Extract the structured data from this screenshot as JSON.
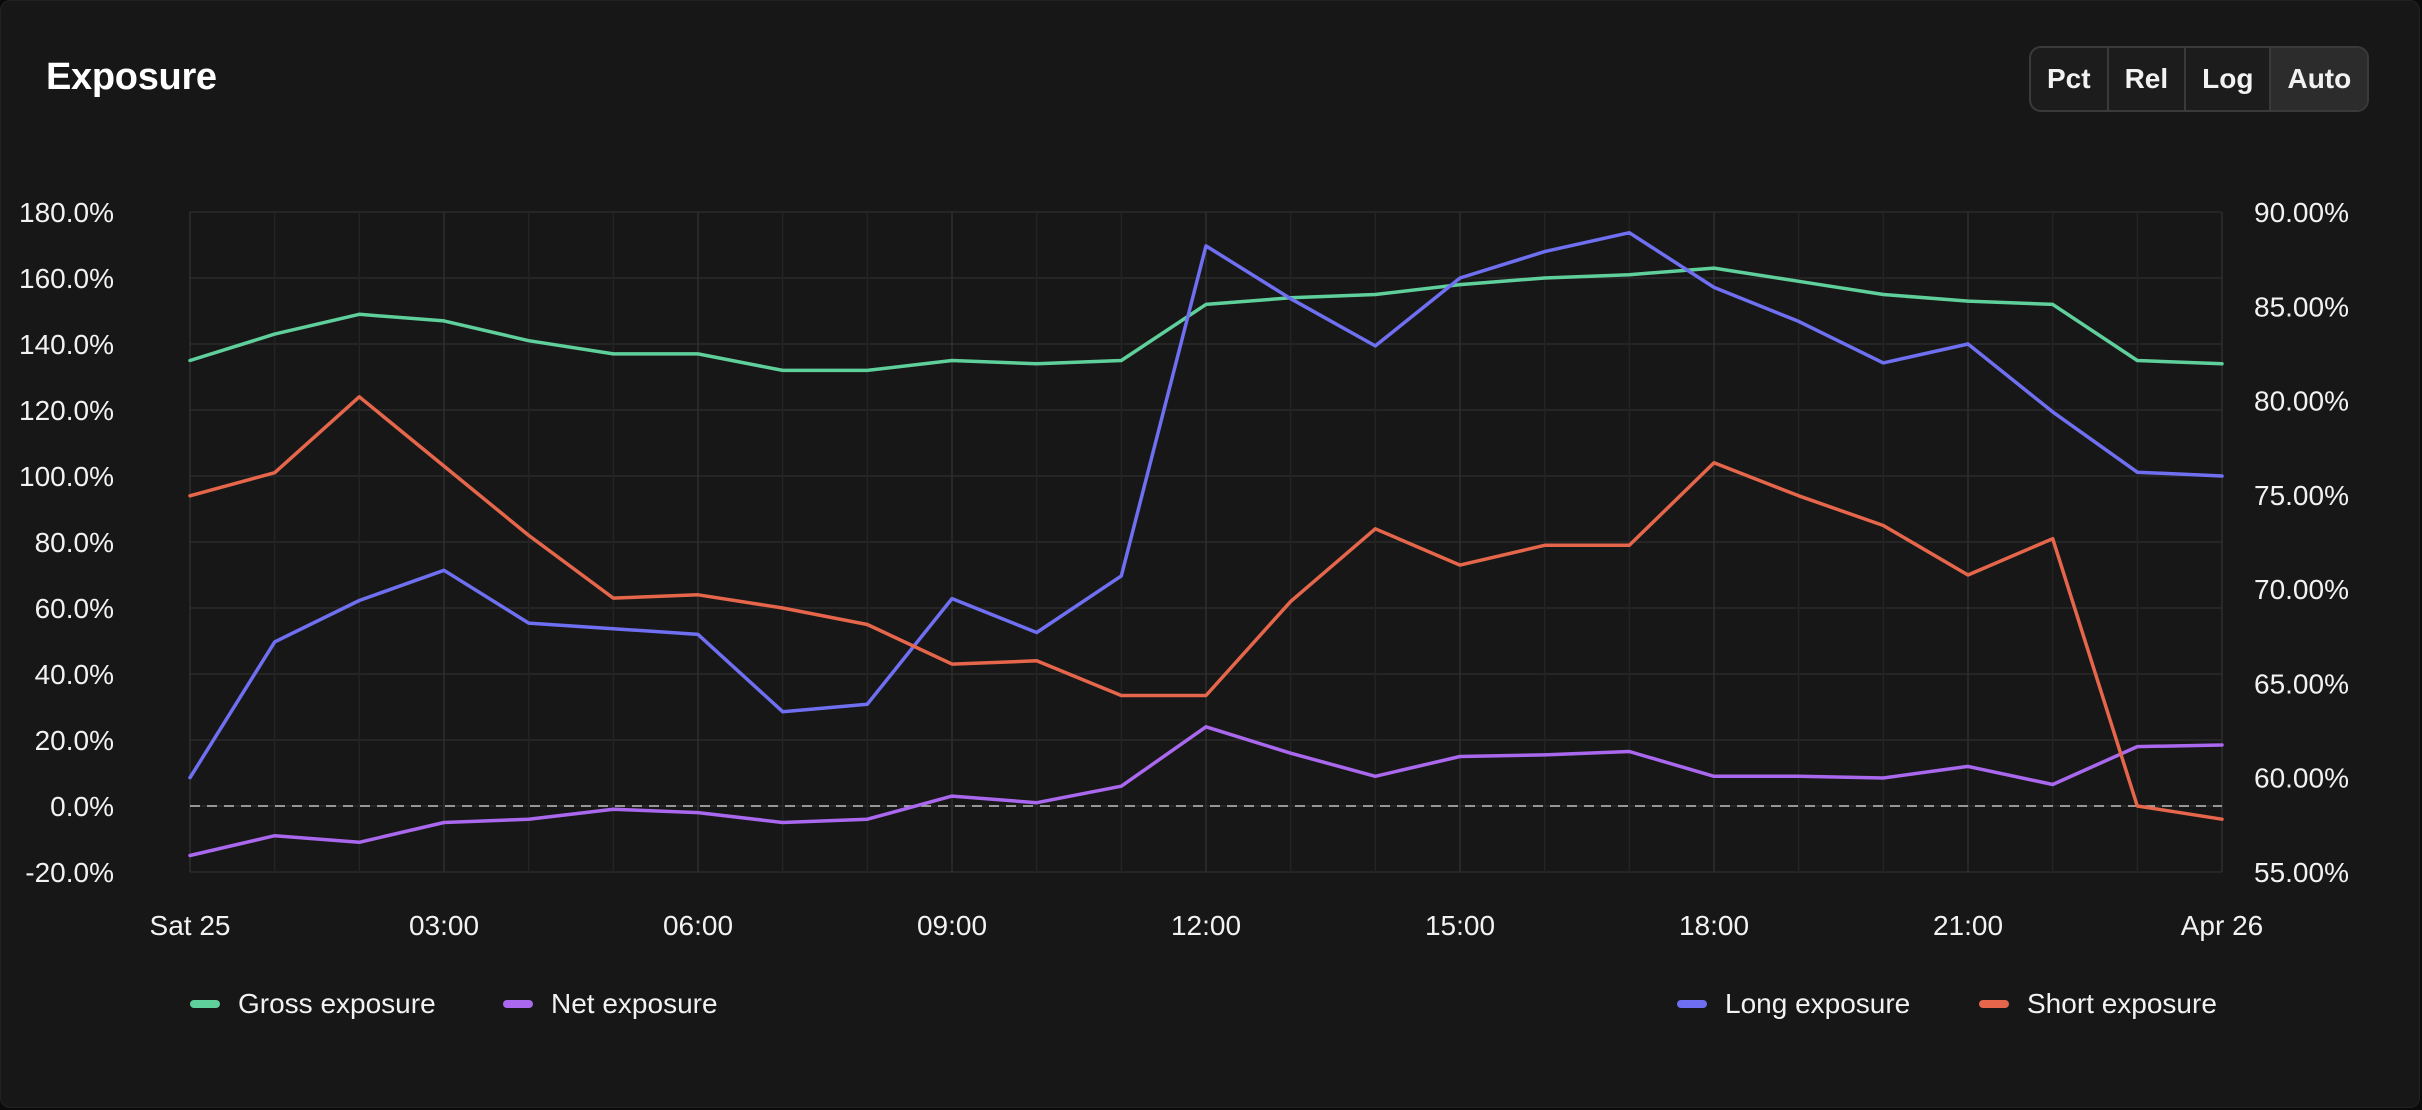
{
  "header": {
    "title": "Exposure",
    "scale_buttons": [
      "Pct",
      "Rel",
      "Log",
      "Auto"
    ],
    "active_scale": "Auto"
  },
  "chart_data": {
    "type": "line",
    "title": "Exposure",
    "x": [
      "Sat 25 00:00",
      "01:00",
      "02:00",
      "03:00",
      "04:00",
      "05:00",
      "06:00",
      "07:00",
      "08:00",
      "09:00",
      "10:00",
      "11:00",
      "12:00",
      "13:00",
      "14:00",
      "15:00",
      "16:00",
      "17:00",
      "18:00",
      "19:00",
      "20:00",
      "21:00",
      "22:00",
      "23:00",
      "Apr 26 00:00"
    ],
    "x_tick_labels": [
      "Sat 25",
      "03:00",
      "06:00",
      "09:00",
      "12:00",
      "15:00",
      "18:00",
      "21:00",
      "Apr 26"
    ],
    "x_tick_index": [
      0,
      3,
      6,
      9,
      12,
      15,
      18,
      21,
      24
    ],
    "left_axis": {
      "ylim": [
        -20,
        180
      ],
      "ticks": [
        -20,
        0,
        20,
        40,
        60,
        80,
        100,
        120,
        140,
        160,
        180
      ],
      "tick_labels": [
        "-20.0%",
        "0.0%",
        "20.0%",
        "40.0%",
        "60.0%",
        "80.0%",
        "100.0%",
        "120.0%",
        "140.0%",
        "160.0%",
        "180.0%"
      ]
    },
    "right_axis": {
      "ylim": [
        55,
        90
      ],
      "ticks": [
        55,
        60,
        65,
        70,
        75,
        80,
        85,
        90
      ],
      "tick_labels": [
        "55.00%",
        "60.00%",
        "65.00%",
        "70.00%",
        "75.00%",
        "80.00%",
        "85.00%",
        "90.00%"
      ]
    },
    "zero_line": true,
    "grid": true,
    "series": [
      {
        "name": "Gross exposure",
        "axis": "left",
        "color": "#5fcf9b",
        "values": [
          135,
          143,
          149,
          147,
          141,
          137,
          137,
          132,
          132,
          135,
          134,
          135,
          152,
          154,
          155,
          158,
          160,
          161,
          163,
          159,
          155,
          153,
          152,
          135,
          134
        ]
      },
      {
        "name": "Net exposure",
        "axis": "left",
        "color": "#a968ee",
        "values": [
          -15,
          -9,
          -11,
          -5,
          -4,
          -1,
          -2,
          -5,
          -4,
          3,
          1,
          6,
          24,
          16,
          9,
          15,
          15.5,
          16.5,
          9,
          9,
          8.5,
          12,
          6.5,
          18,
          18.5
        ]
      },
      {
        "name": "Long exposure",
        "axis": "right",
        "color": "#6f6ff2",
        "values": [
          60,
          67.2,
          69.4,
          71,
          68.2,
          67.9,
          67.6,
          63.5,
          63.9,
          69.5,
          67.7,
          70.7,
          88.2,
          85.4,
          82.9,
          86.5,
          87.9,
          88.9,
          86.0,
          84.2,
          82.0,
          83,
          79.4,
          76.2,
          76
        ]
      },
      {
        "name": "Short exposure",
        "axis": "left",
        "color": "#e5664a",
        "values": [
          94,
          101,
          124,
          103,
          82,
          63,
          64,
          60,
          55,
          43,
          44,
          33.5,
          33.5,
          62,
          84,
          73,
          79,
          79,
          104,
          94,
          85,
          70,
          81,
          0,
          -4
        ]
      }
    ],
    "legend": {
      "bottom_left": [
        "Gross exposure",
        "Net exposure"
      ],
      "bottom_right": [
        "Long exposure",
        "Short exposure"
      ]
    }
  }
}
